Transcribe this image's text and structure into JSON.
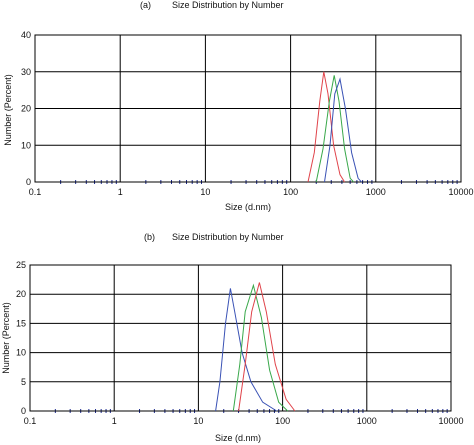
{
  "chart_data": [
    {
      "type": "line",
      "panel_label": "(a)",
      "title": "Size Distribution by Number",
      "xlabel": "Size (d.nm)",
      "ylabel": "Number (Percent)",
      "xscale": "log",
      "xlim": [
        0.1,
        10000
      ],
      "ylim": [
        0,
        40
      ],
      "x_ticks": [
        "0.1",
        "1",
        "10",
        "100",
        "1000",
        "10000"
      ],
      "y_ticks": [
        "0",
        "10",
        "20",
        "30",
        "40"
      ],
      "grid": true,
      "series": [
        {
          "color": "#e0434a",
          "points": [
            [
              160,
              0
            ],
            [
              190,
              8
            ],
            [
              220,
              22
            ],
            [
              245,
              30
            ],
            [
              275,
              24
            ],
            [
              320,
              10
            ],
            [
              380,
              2
            ],
            [
              430,
              0
            ]
          ]
        },
        {
          "color": "#39a84a",
          "points": [
            [
              200,
              0
            ],
            [
              240,
              9
            ],
            [
              285,
              22
            ],
            [
              325,
              29
            ],
            [
              370,
              22
            ],
            [
              430,
              9
            ],
            [
              500,
              1
            ],
            [
              550,
              0
            ]
          ]
        },
        {
          "color": "#3a52b5",
          "points": [
            [
              250,
              0
            ],
            [
              290,
              10
            ],
            [
              330,
              24
            ],
            [
              380,
              28
            ],
            [
              440,
              20
            ],
            [
              520,
              8
            ],
            [
              620,
              1
            ],
            [
              680,
              0
            ]
          ]
        }
      ]
    },
    {
      "type": "line",
      "panel_label": "(b)",
      "title": "Size Distribution by Number",
      "xlabel": "Size (d.nm)",
      "ylabel": "Number (Percent)",
      "xscale": "log",
      "xlim": [
        0.1,
        10000
      ],
      "ylim": [
        0,
        25
      ],
      "x_ticks": [
        "0.1",
        "1",
        "10",
        "100",
        "1000",
        "10000"
      ],
      "y_ticks": [
        "0",
        "5",
        "10",
        "15",
        "20",
        "25"
      ],
      "grid": true,
      "series": [
        {
          "color": "#3a52b5",
          "points": [
            [
              16,
              0
            ],
            [
              18,
              5
            ],
            [
              21,
              15
            ],
            [
              24,
              21
            ],
            [
              27,
              17
            ],
            [
              33,
              10
            ],
            [
              42,
              5
            ],
            [
              58,
              1.5
            ],
            [
              85,
              0
            ]
          ]
        },
        {
          "color": "#39a84a",
          "points": [
            [
              26,
              0
            ],
            [
              31,
              8
            ],
            [
              36,
              17
            ],
            [
              45,
              21.5
            ],
            [
              56,
              16
            ],
            [
              70,
              7
            ],
            [
              90,
              1.5
            ],
            [
              115,
              0
            ]
          ]
        },
        {
          "color": "#e0434a",
          "points": [
            [
              30,
              0
            ],
            [
              36,
              8
            ],
            [
              43,
              17
            ],
            [
              53,
              22
            ],
            [
              64,
              17
            ],
            [
              82,
              8
            ],
            [
              110,
              2
            ],
            [
              140,
              0
            ]
          ]
        }
      ]
    }
  ]
}
